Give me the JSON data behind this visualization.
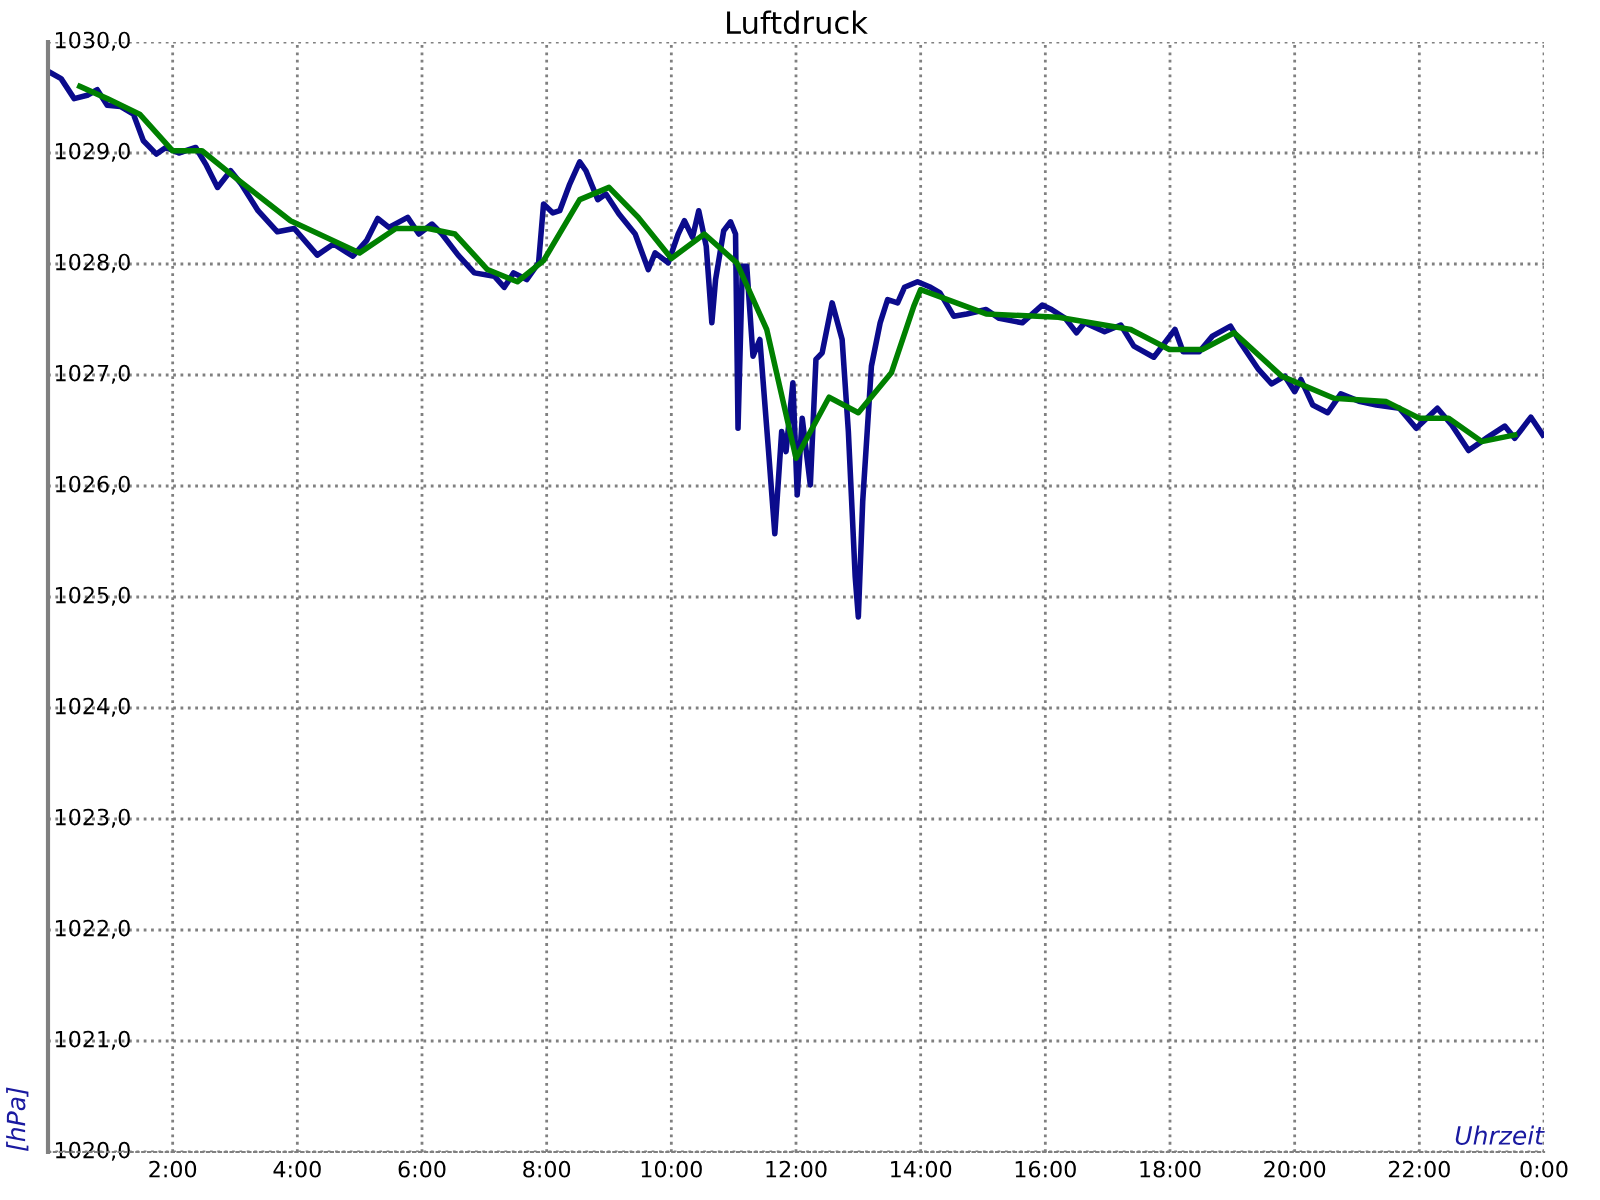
{
  "chart_data": {
    "type": "line",
    "title": "Luftdruck",
    "xlabel": "Uhrzeit",
    "ylabel": "[hPa]",
    "xlim": [
      0,
      24
    ],
    "ylim": [
      1020,
      1030
    ],
    "xticks": [
      {
        "value": 2,
        "label": "2:00"
      },
      {
        "value": 4,
        "label": "4:00"
      },
      {
        "value": 6,
        "label": "6:00"
      },
      {
        "value": 8,
        "label": "8:00"
      },
      {
        "value": 10,
        "label": "10:00"
      },
      {
        "value": 12,
        "label": "12:00"
      },
      {
        "value": 14,
        "label": "14:00"
      },
      {
        "value": 16,
        "label": "16:00"
      },
      {
        "value": 18,
        "label": "18:00"
      },
      {
        "value": 20,
        "label": "20:00"
      },
      {
        "value": 22,
        "label": "22:00"
      },
      {
        "value": 24,
        "label": "0:00"
      }
    ],
    "yticks": [
      {
        "value": 1020,
        "label": "1020,0"
      },
      {
        "value": 1021,
        "label": "1021,0"
      },
      {
        "value": 1022,
        "label": "1022,0"
      },
      {
        "value": 1023,
        "label": "1023,0"
      },
      {
        "value": 1024,
        "label": "1024,0"
      },
      {
        "value": 1025,
        "label": "1025,0"
      },
      {
        "value": 1026,
        "label": "1026,0"
      },
      {
        "value": 1027,
        "label": "1027,0"
      },
      {
        "value": 1028,
        "label": "1028,0"
      },
      {
        "value": 1029,
        "label": "1029,0"
      },
      {
        "value": 1030,
        "label": "1030,0"
      }
    ],
    "grid": true,
    "legend": false,
    "line_style": "solid",
    "marker": "none",
    "series": [
      {
        "color": "#0b0b8c",
        "x": [
          0.02,
          0.21,
          0.42,
          0.63,
          0.79,
          0.95,
          1.16,
          1.37,
          1.53,
          1.74,
          1.89,
          2.1,
          2.37,
          2.53,
          2.72,
          2.93,
          3.1,
          3.37,
          3.68,
          3.95,
          4.32,
          4.58,
          4.89,
          5.11,
          5.29,
          5.47,
          5.77,
          5.95,
          6.16,
          6.32,
          6.58,
          6.84,
          7.16,
          7.32,
          7.47,
          7.68,
          7.87,
          7.95,
          8.1,
          8.21,
          8.37,
          8.53,
          8.63,
          8.82,
          8.95,
          9.16,
          9.42,
          9.63,
          9.74,
          9.95,
          10.11,
          10.21,
          10.34,
          10.44,
          10.56,
          10.65,
          10.71,
          10.84,
          10.95,
          11.03,
          11.07,
          11.14,
          11.21,
          11.31,
          11.42,
          11.56,
          11.66,
          11.77,
          11.84,
          11.95,
          12.02,
          12.1,
          12.23,
          12.32,
          12.42,
          12.58,
          12.74,
          12.84,
          12.95,
          13.0,
          13.07,
          13.21,
          13.35,
          13.47,
          13.63,
          13.74,
          13.95,
          14.16,
          14.31,
          14.53,
          14.74,
          15.05,
          15.26,
          15.63,
          15.95,
          16.1,
          16.32,
          16.5,
          16.63,
          16.95,
          17.21,
          17.42,
          17.74,
          18.08,
          18.21,
          18.47,
          18.68,
          18.97,
          19.13,
          19.42,
          19.63,
          19.84,
          20.0,
          20.1,
          20.29,
          20.53,
          20.74,
          21.05,
          21.31,
          21.68,
          21.95,
          22.29,
          22.52,
          22.79,
          23.1,
          23.37,
          23.53,
          23.79,
          23.98
        ],
        "values": [
          1029.73,
          1029.67,
          1029.49,
          1029.52,
          1029.57,
          1029.43,
          1029.42,
          1029.35,
          1029.11,
          1028.99,
          1029.05,
          1029.0,
          1029.05,
          1028.9,
          1028.69,
          1028.84,
          1028.72,
          1028.48,
          1028.29,
          1028.32,
          1028.08,
          1028.18,
          1028.07,
          1028.21,
          1028.41,
          1028.33,
          1028.42,
          1028.27,
          1028.36,
          1028.27,
          1028.08,
          1027.92,
          1027.89,
          1027.79,
          1027.92,
          1027.86,
          1028.01,
          1028.54,
          1028.46,
          1028.48,
          1028.72,
          1028.92,
          1028.84,
          1028.58,
          1028.63,
          1028.45,
          1028.27,
          1027.95,
          1028.1,
          1028.01,
          1028.27,
          1028.39,
          1028.24,
          1028.48,
          1028.16,
          1027.47,
          1027.86,
          1028.3,
          1028.38,
          1028.27,
          1026.52,
          1027.98,
          1027.98,
          1027.17,
          1027.32,
          1026.31,
          1025.57,
          1026.49,
          1026.31,
          1026.93,
          1025.92,
          1026.61,
          1026.01,
          1027.14,
          1027.2,
          1027.65,
          1027.32,
          1026.49,
          1025.18,
          1024.82,
          1025.86,
          1027.08,
          1027.47,
          1027.68,
          1027.65,
          1027.79,
          1027.84,
          1027.79,
          1027.74,
          1027.53,
          1027.55,
          1027.59,
          1027.51,
          1027.47,
          1027.63,
          1027.59,
          1027.51,
          1027.38,
          1027.47,
          1027.39,
          1027.45,
          1027.26,
          1027.16,
          1027.41,
          1027.21,
          1027.21,
          1027.35,
          1027.44,
          1027.29,
          1027.05,
          1026.92,
          1026.99,
          1026.85,
          1026.96,
          1026.73,
          1026.66,
          1026.83,
          1026.76,
          1026.73,
          1026.7,
          1026.52,
          1026.7,
          1026.55,
          1026.32,
          1026.44,
          1026.54,
          1026.43,
          1026.62,
          1026.46
        ]
      },
      {
        "color": "#008000",
        "x": [
          0.51,
          0.95,
          1.47,
          2.0,
          2.47,
          3.0,
          3.89,
          5.0,
          5.58,
          6.1,
          6.53,
          7.05,
          7.53,
          7.95,
          8.53,
          9.0,
          9.47,
          10.0,
          10.53,
          11.05,
          11.53,
          12.0,
          12.53,
          13.0,
          13.53,
          13.89,
          14.0,
          15.05,
          16.21,
          17.37,
          17.99,
          18.52,
          19.03,
          19.79,
          20.63,
          21.47,
          22.0,
          22.47,
          23.0,
          23.53
        ],
        "values": [
          1029.6,
          1029.49,
          1029.35,
          1029.02,
          1029.02,
          1028.78,
          1028.39,
          1028.1,
          1028.32,
          1028.32,
          1028.27,
          1027.95,
          1027.84,
          1028.03,
          1028.58,
          1028.69,
          1028.42,
          1028.05,
          1028.27,
          1028.01,
          1027.41,
          1026.25,
          1026.8,
          1026.66,
          1027.02,
          1027.62,
          1027.77,
          1027.55,
          1027.52,
          1027.41,
          1027.23,
          1027.23,
          1027.38,
          1026.99,
          1026.79,
          1026.76,
          1026.61,
          1026.61,
          1026.4,
          1026.46
        ]
      }
    ]
  }
}
